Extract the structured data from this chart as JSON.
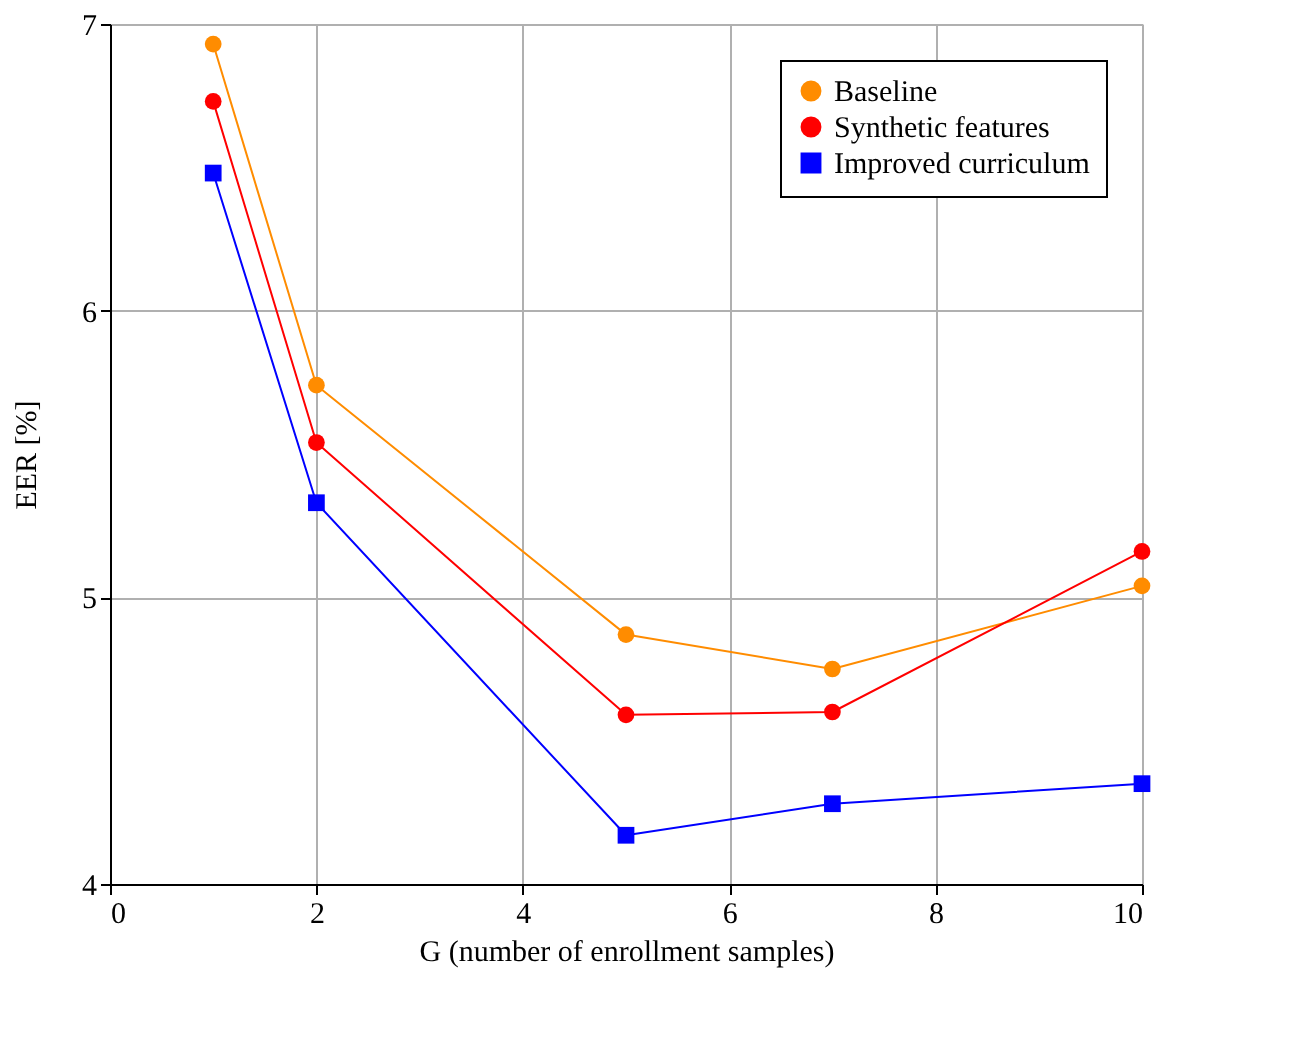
{
  "chart_data": {
    "type": "line",
    "xlabel": "G (number of enrollment samples)",
    "ylabel": "EER [%]",
    "x": [
      1,
      2,
      5,
      7,
      10
    ],
    "series": [
      {
        "name": "Baseline",
        "color": "#ff8c00",
        "marker": "circle",
        "values": [
          6.93,
          5.74,
          4.87,
          4.75,
          5.04
        ]
      },
      {
        "name": "Synthetic features",
        "color": "#ff0000",
        "marker": "circle",
        "values": [
          6.73,
          5.54,
          4.59,
          4.6,
          5.16
        ]
      },
      {
        "name": "Improved curriculum",
        "color": "#0000ff",
        "marker": "square",
        "values": [
          6.48,
          5.33,
          4.17,
          4.28,
          4.35
        ]
      }
    ],
    "xlim": [
      0,
      10
    ],
    "xticks": [
      0,
      2,
      4,
      6,
      8,
      10
    ],
    "ylim": [
      4,
      7
    ],
    "yticks": [
      4,
      5,
      6,
      7
    ],
    "grid": true,
    "legend": "top right",
    "line_style": "solid"
  }
}
